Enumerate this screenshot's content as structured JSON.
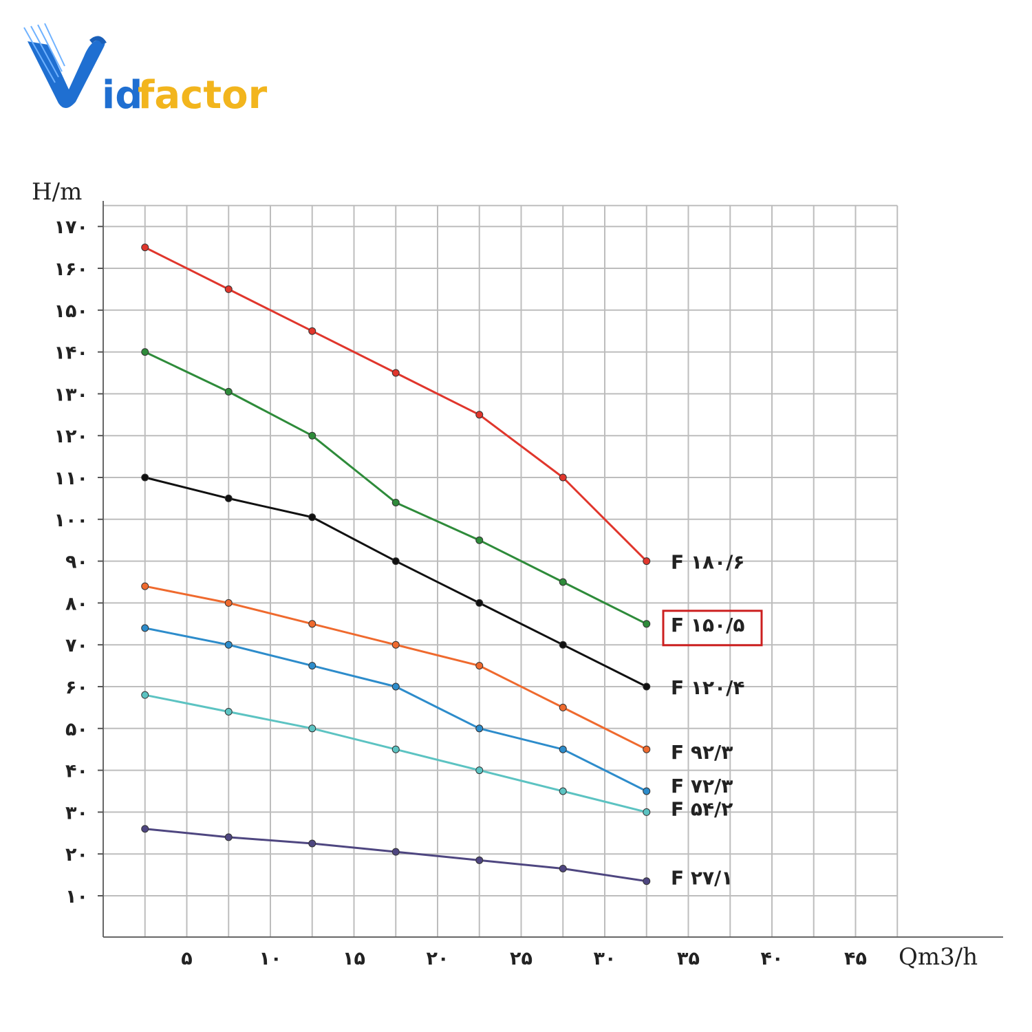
{
  "logo": {
    "text_id": "id",
    "text_factor": "factor",
    "brand_colors": [
      "#1f6fd1",
      "#f2b51d"
    ]
  },
  "chart_data": {
    "type": "line",
    "xlabel": "Qm3/h",
    "ylabel": "H/m",
    "xlim": [
      0,
      47.5
    ],
    "ylim": [
      5,
      175
    ],
    "x_ticks": [
      5,
      10,
      15,
      20,
      25,
      30,
      35,
      40,
      45
    ],
    "x_tick_labels": [
      "۵",
      "۱۰",
      "۱۵",
      "۲۰",
      "۲۵",
      "۳۰",
      "۳۵",
      "۴۰",
      "۴۵"
    ],
    "y_ticks": [
      10,
      20,
      30,
      40,
      50,
      60,
      70,
      80,
      90,
      100,
      110,
      120,
      130,
      140,
      150,
      160,
      170
    ],
    "y_tick_labels": [
      "۱۰",
      "۲۰",
      "۳۰",
      "۴۰",
      "۵۰",
      "۶۰",
      "۷۰",
      "۸۰",
      "۹۰",
      "۱۰۰",
      "۱۱۰",
      "۱۲۰",
      "۱۳۰",
      "۱۴۰",
      "۱۵۰",
      "۱۶۰",
      "۱۷۰"
    ],
    "grid": true,
    "x": [
      2.5,
      7.5,
      12.5,
      17.5,
      22.5,
      27.5,
      32.5
    ],
    "series": [
      {
        "name": "F ۱۸۰/۶",
        "color": "#e0362c",
        "values": [
          165,
          155,
          145,
          135,
          125,
          110,
          90
        ]
      },
      {
        "name": "F ۱۵۰/۵",
        "color": "#2e8b3a",
        "values": [
          140,
          130.5,
          120,
          104,
          95,
          85,
          75
        ],
        "highlighted": true
      },
      {
        "name": "F ۱۲۰/۴",
        "color": "#111111",
        "values": [
          110,
          105,
          100.5,
          90,
          80,
          70,
          60
        ]
      },
      {
        "name": "F ۹۲/۳",
        "color": "#ef6a2e",
        "values": [
          84,
          80,
          75,
          70,
          65,
          55,
          45
        ]
      },
      {
        "name": "F ۷۲/۳",
        "color": "#2d8ccb",
        "values": [
          74,
          70,
          65,
          60,
          50,
          45,
          35
        ]
      },
      {
        "name": "F ۵۴/۲",
        "color": "#5cc3c2",
        "values": [
          58,
          54,
          50,
          45,
          40,
          35,
          30
        ]
      },
      {
        "name": "F ۲۷/۱",
        "color": "#4e4680",
        "values": [
          26,
          24,
          22.5,
          20.5,
          18.5,
          16.5,
          13.5
        ]
      }
    ],
    "highlight_color": "#cc1f1f"
  }
}
